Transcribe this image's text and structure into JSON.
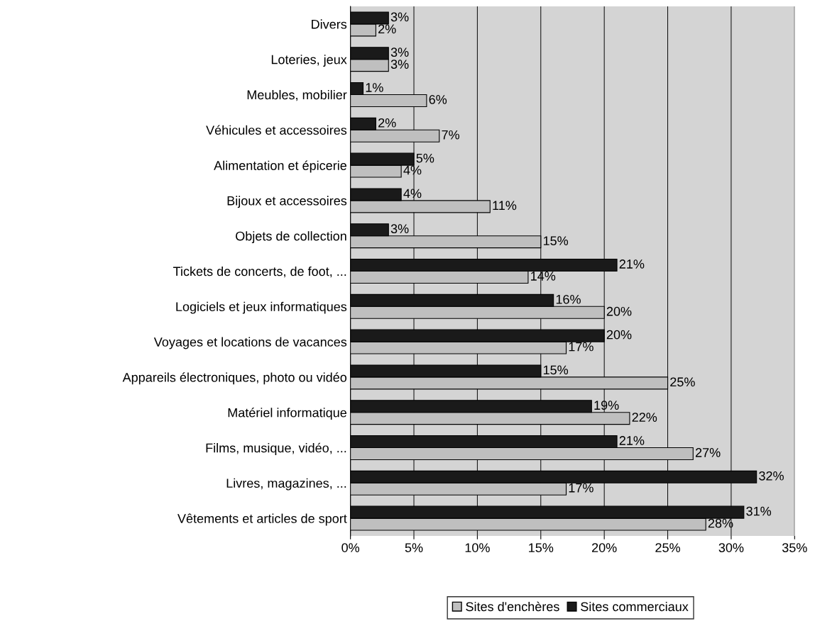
{
  "chart_data": {
    "type": "bar",
    "orientation": "horizontal",
    "categories": [
      "Divers",
      "Loteries, jeux",
      "Meubles, mobilier",
      "Véhicules et accessoires",
      "Alimentation et épicerie",
      "Bijoux et accessoires",
      "Objets de collection",
      "Tickets de concerts, de foot, ...",
      "Logiciels et jeux informatiques",
      "Voyages et locations de vacances",
      "Appareils électroniques, photo ou vidéo",
      "Matériel informatique",
      "Films, musique, vidéo, ...",
      "Livres, magazines, ...",
      "Vêtements et articles de sport"
    ],
    "series": [
      {
        "name": "Sites d'enchères",
        "color": "#bfbfbf",
        "values": [
          2,
          3,
          6,
          7,
          4,
          11,
          15,
          14,
          20,
          17,
          25,
          22,
          27,
          17,
          28
        ],
        "value_labels": [
          "2%",
          "3%",
          "6%",
          "7%",
          "4%",
          "11%",
          "15%",
          "14%",
          "20%",
          "17%",
          "25%",
          "22%",
          "27%",
          "17%",
          "28%"
        ]
      },
      {
        "name": "Sites commerciaux",
        "color": "#1a1a1a",
        "values": [
          3,
          3,
          1,
          2,
          5,
          4,
          3,
          21,
          16,
          20,
          15,
          19,
          21,
          32,
          31
        ],
        "value_labels": [
          "3%",
          "3%",
          "1%",
          "2%",
          "5%",
          "4%",
          "3%",
          "21%",
          "16%",
          "20%",
          "15%",
          "19%",
          "21%",
          "32%",
          "31%"
        ]
      }
    ],
    "xlim": [
      0,
      35
    ],
    "xticks": [
      {
        "value": 0,
        "label": "0%"
      },
      {
        "value": 5,
        "label": "5%"
      },
      {
        "value": 10,
        "label": "10%"
      },
      {
        "value": 15,
        "label": "15%"
      },
      {
        "value": 20,
        "label": "20%"
      },
      {
        "value": 25,
        "label": "25%"
      },
      {
        "value": 30,
        "label": "30%"
      },
      {
        "value": 35,
        "label": "35%"
      }
    ],
    "grid": "x",
    "legend": "bottom"
  }
}
